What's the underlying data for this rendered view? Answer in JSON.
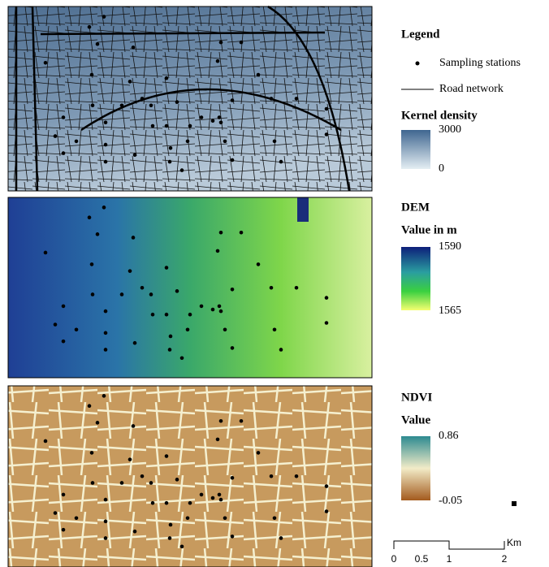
{
  "legend": {
    "title": "Legend",
    "sampling": "Sampling stations",
    "road": "Road network"
  },
  "kernel": {
    "title": "Kernel density",
    "max": "3000",
    "min": "0"
  },
  "dem": {
    "title": "DEM",
    "subtitle": "Value in m",
    "max": "1590",
    "min": "1565"
  },
  "ndvi": {
    "title": "NDVI",
    "subtitle": "Value",
    "max": "0.86",
    "min": "-0.05"
  },
  "scale": {
    "ticks": [
      "0",
      "0.5",
      "1",
      "2"
    ],
    "unit": "Km"
  }
}
